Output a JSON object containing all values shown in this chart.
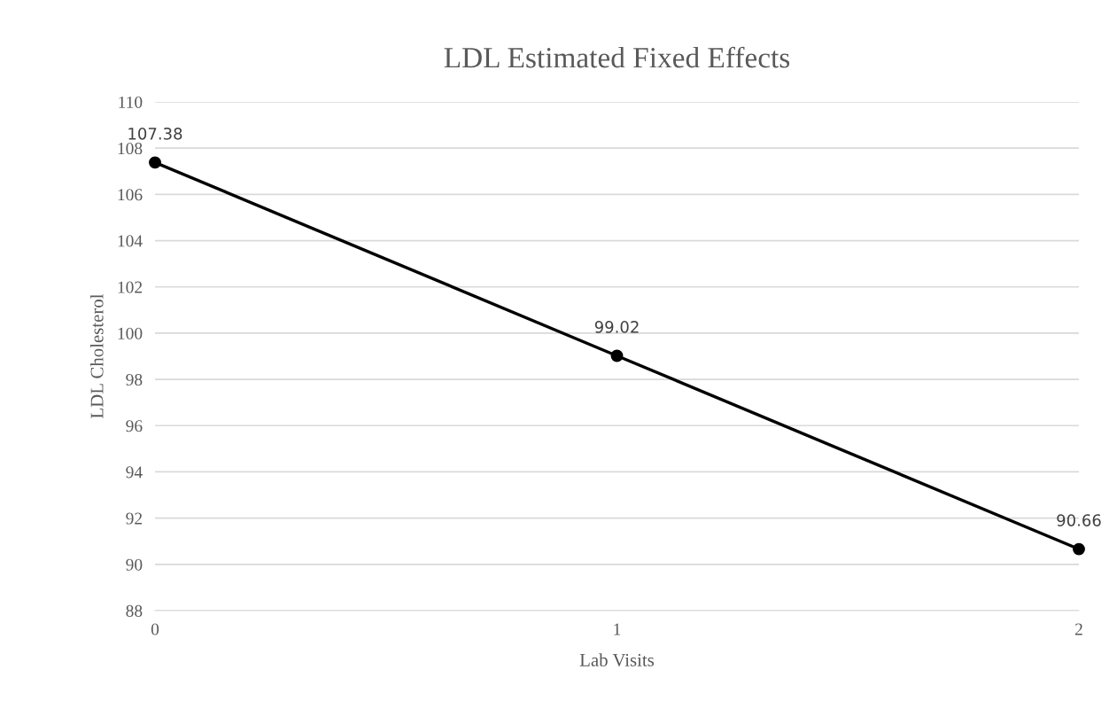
{
  "chart_data": {
    "type": "line",
    "title": "LDL Estimated Fixed Effects",
    "xlabel": "Lab Visits",
    "ylabel": "LDL Cholesterol",
    "x": [
      0,
      1,
      2
    ],
    "series": [
      {
        "color": "#000000",
        "values": [
          107.38,
          99.02,
          90.66
        ]
      }
    ],
    "xlim": [
      0,
      2
    ],
    "xticks": [
      0,
      1,
      2
    ],
    "ylim": [
      88,
      110
    ],
    "yticks": [
      88,
      90,
      92,
      94,
      96,
      98,
      100,
      102,
      104,
      106,
      108,
      110
    ],
    "grid": "y",
    "marker": "circle",
    "line_style": "solid",
    "data_labels": true,
    "legend": false
  }
}
